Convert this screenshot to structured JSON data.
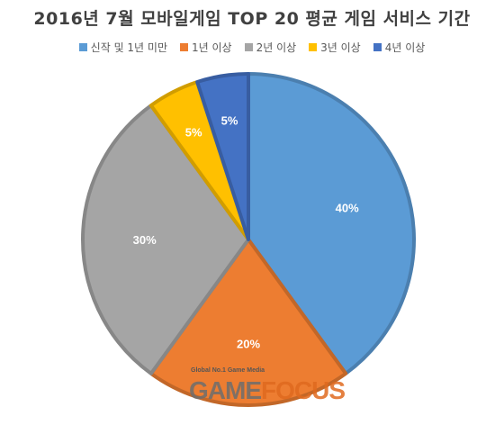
{
  "title": "2016년 7월 모바일게임 TOP 20 평균 게임 서비스 기간",
  "chart_data": {
    "type": "pie",
    "title": "2016년 7월 모바일게임 TOP 20 평균 게임 서비스 기간",
    "categories": [
      "신작 및 1년 미만",
      "1년 이상",
      "2년 이상",
      "3년 이상",
      "4년 이상"
    ],
    "values": [
      40,
      20,
      30,
      5,
      5
    ],
    "labels": [
      "40%",
      "20%",
      "30%",
      "5%",
      "5%"
    ],
    "colors": [
      "#5B9BD5",
      "#ED7D31",
      "#A5A5A5",
      "#FFC000",
      "#4472C4"
    ],
    "legend": "top",
    "start_angle": "12 o'clock, clockwise"
  },
  "watermark": {
    "tagline": "Global No.1 Game Media",
    "brand_a": "GAME",
    "brand_b": "FOCUS"
  }
}
